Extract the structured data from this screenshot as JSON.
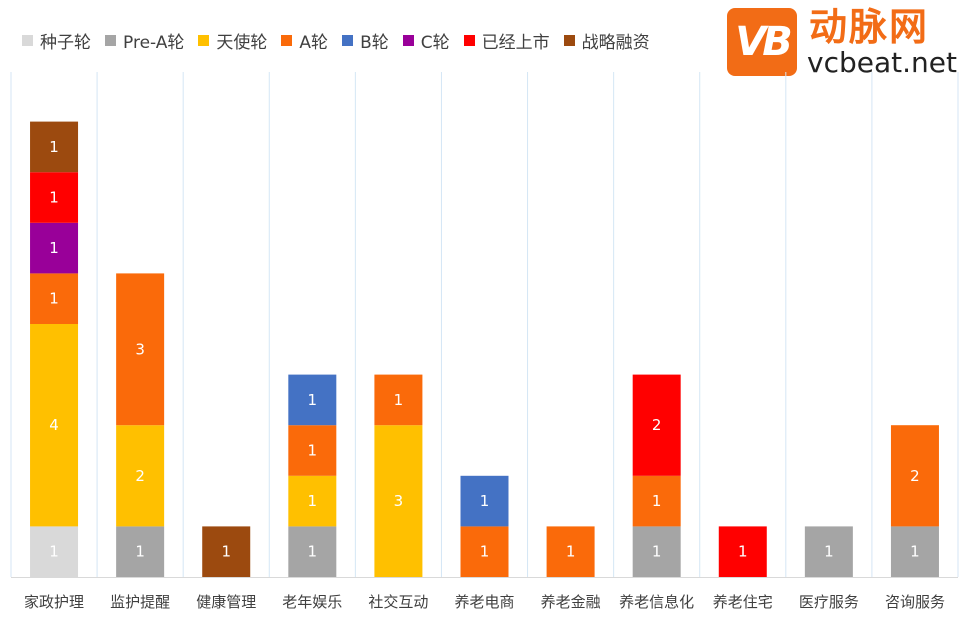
{
  "logo": {
    "mark": "VB",
    "name": "动脉网",
    "url": "vcbeat.net"
  },
  "chart_data": {
    "type": "bar",
    "stacked": true,
    "categories": [
      "家政护理",
      "监护提醒",
      "健康管理",
      "老年娱乐",
      "社交互动",
      "养老电商",
      "养老金融",
      "养老信息化",
      "养老住宅",
      "医疗服务",
      "咨询服务"
    ],
    "series": [
      {
        "name": "种子轮",
        "color": "#d9d9d9",
        "values": [
          1,
          0,
          0,
          0,
          0,
          0,
          0,
          0,
          0,
          0,
          0
        ]
      },
      {
        "name": "Pre-A轮",
        "color": "#a5a5a5",
        "values": [
          0,
          1,
          0,
          1,
          0,
          0,
          0,
          1,
          0,
          1,
          1
        ]
      },
      {
        "name": "天使轮",
        "color": "#ffc000",
        "values": [
          4,
          2,
          0,
          1,
          3,
          0,
          0,
          0,
          0,
          0,
          0
        ]
      },
      {
        "name": "A轮",
        "color": "#fa6a0a",
        "values": [
          1,
          3,
          0,
          1,
          1,
          1,
          1,
          1,
          0,
          0,
          2
        ]
      },
      {
        "name": "B轮",
        "color": "#4472c4",
        "values": [
          0,
          0,
          0,
          1,
          0,
          1,
          0,
          0,
          0,
          0,
          0
        ]
      },
      {
        "name": "C轮",
        "color": "#990099",
        "values": [
          1,
          0,
          0,
          0,
          0,
          0,
          0,
          0,
          0,
          0,
          0
        ]
      },
      {
        "name": "已经上市",
        "color": "#ff0000",
        "values": [
          1,
          0,
          0,
          0,
          0,
          0,
          0,
          2,
          1,
          0,
          0
        ]
      },
      {
        "name": "战略融资",
        "color": "#9c4a0f",
        "values": [
          1,
          0,
          1,
          0,
          0,
          0,
          0,
          0,
          0,
          0,
          0
        ]
      }
    ],
    "ylim": [
      0,
      9
    ],
    "grid": false,
    "legend_position": "top-left"
  }
}
